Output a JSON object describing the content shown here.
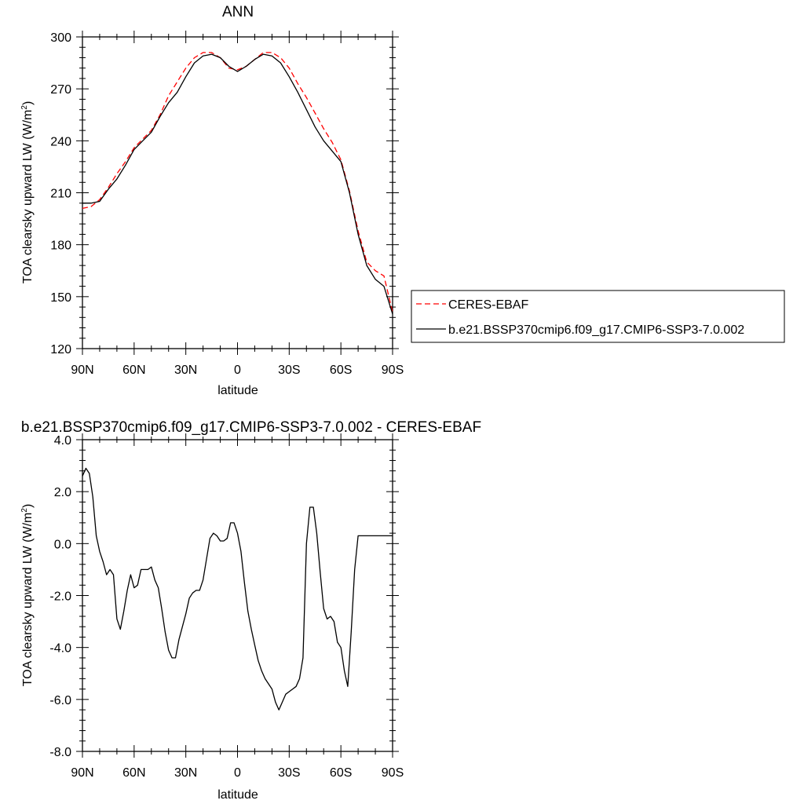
{
  "chart_data": [
    {
      "type": "line",
      "title": "ANN",
      "xlabel": "latitude",
      "ylabel": "TOA clearsky upward LW (W/m",
      "ylabel_sup": "2",
      "ylabel_close": ")",
      "xlim": [
        90,
        -90
      ],
      "ylim": [
        120,
        300
      ],
      "x_ticks": [
        90,
        60,
        30,
        0,
        -30,
        -60,
        -90
      ],
      "x_tick_labels": [
        "90N",
        "60N",
        "30N",
        "0",
        "30S",
        "60S",
        "90S"
      ],
      "y_ticks": [
        120,
        150,
        180,
        210,
        240,
        270,
        300
      ],
      "y_tick_labels": [
        "120",
        "150",
        "180",
        "210",
        "240",
        "270",
        "300"
      ],
      "legend_position": "right",
      "series": [
        {
          "name": "CERES-EBAF",
          "color": "#ff0000",
          "dash": "dashed",
          "x": [
            90,
            85,
            80,
            75,
            70,
            65,
            60,
            55,
            50,
            45,
            40,
            35,
            30,
            25,
            20,
            15,
            10,
            5,
            0,
            -5,
            -10,
            -15,
            -20,
            -25,
            -30,
            -35,
            -40,
            -45,
            -50,
            -55,
            -60,
            -65,
            -70,
            -75,
            -80,
            -85,
            -90
          ],
          "y": [
            201,
            202,
            206,
            213,
            221,
            228,
            236,
            241,
            246,
            255,
            266,
            274,
            282,
            288,
            291,
            291,
            288,
            282,
            281,
            283,
            287,
            291,
            291,
            288,
            282,
            273,
            265,
            256,
            247,
            239,
            229,
            211,
            188,
            170,
            165,
            162,
            141
          ]
        },
        {
          "name": "b.e21.BSSP370cmip6.f09_g17.CMIP6-SSP3-7.0.002",
          "color": "#000000",
          "dash": "solid",
          "x": [
            90,
            85,
            80,
            75,
            70,
            65,
            60,
            55,
            50,
            45,
            40,
            35,
            30,
            25,
            20,
            15,
            10,
            5,
            0,
            -5,
            -10,
            -15,
            -20,
            -25,
            -30,
            -35,
            -40,
            -45,
            -50,
            -55,
            -60,
            -65,
            -70,
            -75,
            -80,
            -85,
            -90
          ],
          "y": [
            204,
            204,
            205,
            212,
            218,
            226,
            235,
            240,
            245,
            254,
            262,
            268,
            277,
            285,
            289,
            290,
            288,
            283,
            280,
            283,
            287,
            290,
            289,
            285,
            277,
            268,
            258,
            248,
            240,
            234,
            228,
            210,
            186,
            168,
            160,
            156,
            140
          ]
        }
      ]
    },
    {
      "type": "line",
      "title": "b.e21.BSSP370cmip6.f09_g17.CMIP6-SSP3-7.0.002 - CERES-EBAF",
      "xlabel": "latitude",
      "ylabel": "TOA clearsky upward LW (W/m",
      "ylabel_sup": "2",
      "ylabel_close": ")",
      "xlim": [
        90,
        -90
      ],
      "ylim": [
        -8,
        4
      ],
      "x_ticks": [
        90,
        60,
        30,
        0,
        -30,
        -60,
        -90
      ],
      "x_tick_labels": [
        "90N",
        "60N",
        "30N",
        "0",
        "30S",
        "60S",
        "90S"
      ],
      "y_ticks": [
        -8,
        -6,
        -4,
        -2,
        0,
        2,
        4
      ],
      "y_tick_labels": [
        "-8.0",
        "-6.0",
        "-4.0",
        "-2.0",
        "0.0",
        "2.0",
        "4.0"
      ],
      "series": [
        {
          "name": "",
          "color": "#000000",
          "dash": "solid",
          "x": [
            90,
            88,
            86,
            84,
            82,
            80,
            78,
            76,
            74,
            72,
            70,
            68,
            66,
            64,
            62,
            60,
            58,
            56,
            54,
            52,
            50,
            48,
            46,
            44,
            42,
            40,
            38,
            36,
            34,
            32,
            30,
            28,
            26,
            24,
            22,
            20,
            18,
            16,
            14,
            12,
            10,
            8,
            6,
            4,
            2,
            0,
            -2,
            -4,
            -6,
            -8,
            -10,
            -12,
            -14,
            -16,
            -18,
            -20,
            -22,
            -24,
            -26,
            -28,
            -30,
            -32,
            -34,
            -36,
            -38,
            -40,
            -42,
            -44,
            -46,
            -48,
            -50,
            -52,
            -54,
            -56,
            -58,
            -60,
            -62,
            -64,
            -66,
            -68,
            -70,
            -72,
            -74,
            -76,
            -78,
            -80,
            -82,
            -84,
            -86,
            -88,
            -90
          ],
          "y": [
            2.6,
            2.9,
            2.7,
            1.8,
            0.3,
            -0.3,
            -0.7,
            -1.2,
            -1.0,
            -1.2,
            -2.9,
            -3.3,
            -2.6,
            -1.8,
            -1.2,
            -1.7,
            -1.6,
            -1.0,
            -1.0,
            -1.0,
            -0.9,
            -1.4,
            -1.7,
            -2.5,
            -3.4,
            -4.1,
            -4.4,
            -4.4,
            -3.7,
            -3.2,
            -2.7,
            -2.1,
            -1.9,
            -1.8,
            -1.8,
            -1.4,
            -0.6,
            0.2,
            0.4,
            0.3,
            0.1,
            0.1,
            0.2,
            0.8,
            0.8,
            0.4,
            -0.3,
            -1.5,
            -2.6,
            -3.3,
            -3.9,
            -4.5,
            -4.9,
            -5.2,
            -5.4,
            -5.6,
            -6.1,
            -6.4,
            -6.1,
            -5.8,
            -5.7,
            -5.6,
            -5.5,
            -5.2,
            -4.4,
            0.0,
            1.4,
            1.4,
            0.4,
            -1.1,
            -2.5,
            -2.9,
            -2.8,
            -3.0,
            -3.8,
            -4.0,
            -4.9,
            -5.5,
            -3.4,
            -1.0,
            0.3,
            0.3,
            0.3,
            0.3,
            0.3,
            0.3,
            0.3,
            0.3,
            0.3,
            0.3,
            0.3
          ]
        }
      ]
    }
  ]
}
